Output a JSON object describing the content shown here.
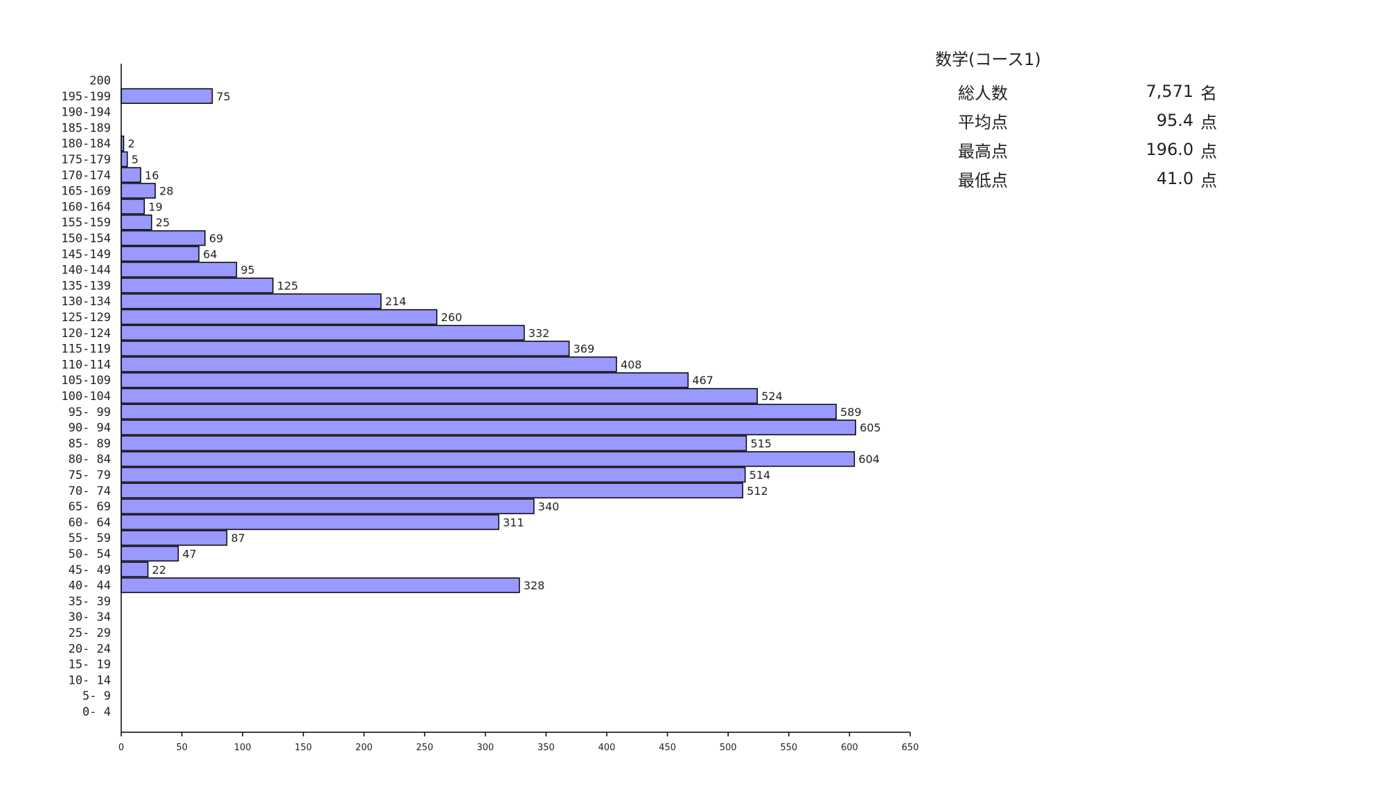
{
  "stats": {
    "title": "数学(コース1)",
    "rows": [
      {
        "label": "総人数",
        "value": "7,571",
        "unit": "名"
      },
      {
        "label": "平均点",
        "value": "95.4",
        "unit": "点"
      },
      {
        "label": "最高点",
        "value": "196.0",
        "unit": "点"
      },
      {
        "label": "最低点",
        "value": "41.0",
        "unit": "点"
      }
    ]
  },
  "chart_data": {
    "type": "bar",
    "orientation": "horizontal",
    "title": "",
    "xlabel": "",
    "ylabel": "",
    "xlim": [
      0,
      650
    ],
    "xticks": [
      0,
      50,
      100,
      150,
      200,
      250,
      300,
      350,
      400,
      450,
      500,
      550,
      600,
      650
    ],
    "bar_color": "#9999ff",
    "grid": false,
    "categories": [
      "200",
      "195-199",
      "190-194",
      "185-189",
      "180-184",
      "175-179",
      "170-174",
      "165-169",
      "160-164",
      "155-159",
      "150-154",
      "145-149",
      "140-144",
      "135-139",
      "130-134",
      "125-129",
      "120-124",
      "115-119",
      "110-114",
      "105-109",
      "100-104",
      "95- 99",
      "90- 94",
      "85- 89",
      "80- 84",
      "75- 79",
      "70- 74",
      "65- 69",
      "60- 64",
      "55- 59",
      "50- 54",
      "45- 49",
      "40- 44",
      "35- 39",
      "30- 34",
      "25- 29",
      "20- 24",
      "15- 19",
      "10- 14",
      "5- 9",
      "0- 4"
    ],
    "values": [
      null,
      75,
      null,
      null,
      2,
      5,
      16,
      28,
      19,
      25,
      69,
      64,
      95,
      125,
      214,
      260,
      332,
      369,
      408,
      467,
      524,
      589,
      605,
      515,
      604,
      514,
      512,
      340,
      311,
      87,
      47,
      22,
      328,
      null,
      null,
      null,
      null,
      null,
      null,
      null,
      null
    ]
  }
}
